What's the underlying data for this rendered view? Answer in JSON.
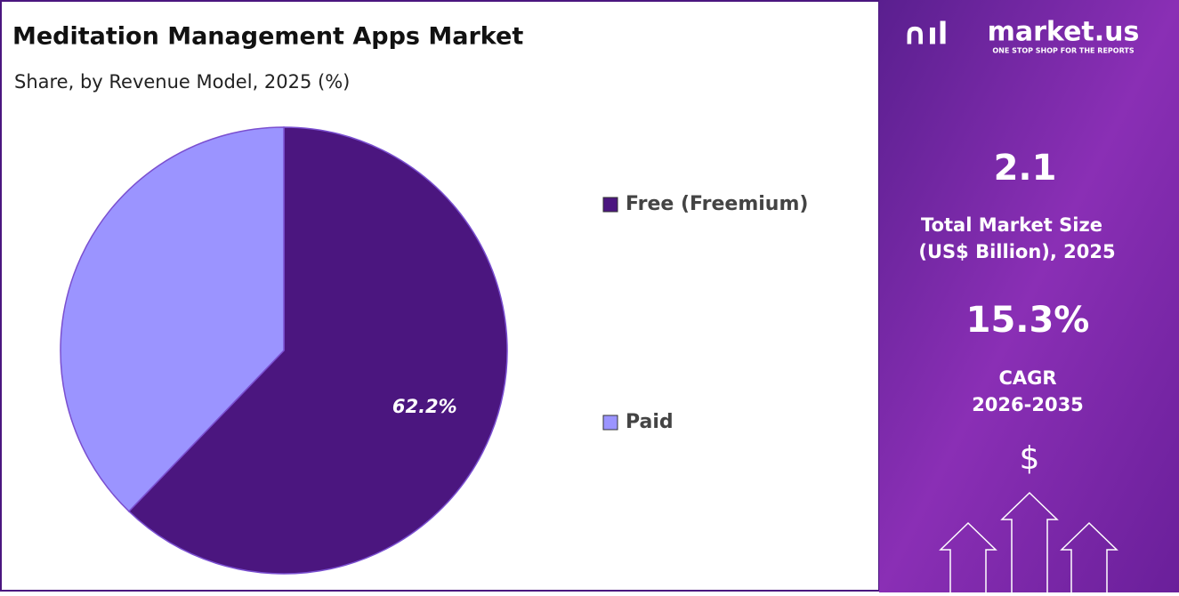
{
  "chart_data": {
    "type": "pie",
    "title": "Meditation Management Apps Market",
    "subtitle": "Share, by Revenue Model, 2025 (%)",
    "categories": [
      "Free (Freemium)",
      "Paid"
    ],
    "values": [
      62.2,
      37.8
    ],
    "value_labels": [
      "62.2%",
      null
    ],
    "colors": [
      "#4b167f",
      "#9b94ff"
    ]
  },
  "sidebar": {
    "logo": "market.us",
    "tagline": "ONE STOP SHOP FOR THE REPORTS",
    "market_size": "2.1",
    "market_size_label": [
      "Total Market Size",
      "(US$ Billion), 2025"
    ],
    "cagr": "15.3%",
    "cagr_label": [
      "CAGR",
      "2026-2035"
    ],
    "currency": "$"
  }
}
